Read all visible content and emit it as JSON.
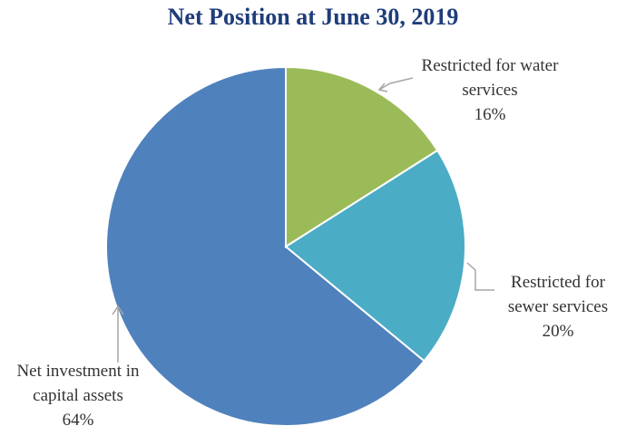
{
  "chart_data": {
    "type": "pie",
    "title": "Net Position at June 30, 2019",
    "categories": [
      "Restricted for water services",
      "Restricted for sewer services",
      "Net investment in capital assets"
    ],
    "values": [
      16,
      20,
      64
    ],
    "value_labels": [
      "16%",
      "20%",
      "64%"
    ],
    "colors": [
      "#9bbb59",
      "#4bacc6",
      "#4f81bd"
    ]
  }
}
